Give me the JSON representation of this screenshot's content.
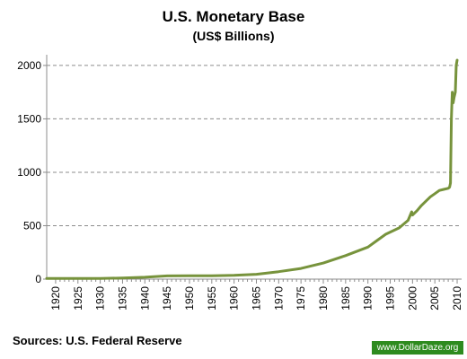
{
  "chart_data": {
    "type": "line",
    "title": "U.S. Monetary Base",
    "subtitle": "(US$ Billions)",
    "xlabel": "",
    "ylabel": "",
    "xlim": [
      1918,
      2011
    ],
    "ylim": [
      0,
      2100
    ],
    "y_ticks": [
      0,
      500,
      1000,
      1500,
      2000
    ],
    "x_ticks": [
      1920,
      1925,
      1930,
      1935,
      1940,
      1945,
      1950,
      1955,
      1960,
      1965,
      1970,
      1975,
      1980,
      1985,
      1990,
      1995,
      2000,
      2005,
      2010
    ],
    "grid": "horizontal dashed",
    "legend": "none",
    "line_color": "#77933c",
    "series": [
      {
        "x": [
          1918,
          1920,
          1925,
          1930,
          1935,
          1940,
          1945,
          1950,
          1955,
          1960,
          1965,
          1970,
          1975,
          1980,
          1985,
          1990,
          1992,
          1994,
          1995,
          1997,
          1999,
          1999.8,
          2000,
          2000.5,
          2001,
          2002,
          2003,
          2004,
          2005,
          2006,
          2007,
          2008,
          2008.3,
          2008.5,
          2008.7,
          2008.9,
          2009.1,
          2009.3,
          2009.6,
          2009.8,
          2010
        ],
        "y": [
          6,
          7,
          7,
          7,
          10,
          18,
          30,
          32,
          32,
          35,
          45,
          70,
          100,
          150,
          220,
          300,
          360,
          420,
          440,
          480,
          550,
          630,
          600,
          620,
          640,
          690,
          730,
          770,
          800,
          830,
          840,
          850,
          860,
          900,
          1500,
          1750,
          1650,
          1700,
          1750,
          2000,
          2050
        ]
      }
    ]
  },
  "footer": {
    "source": "Sources: U.S. Federal Reserve",
    "watermark": "www.DollarDaze.org"
  }
}
